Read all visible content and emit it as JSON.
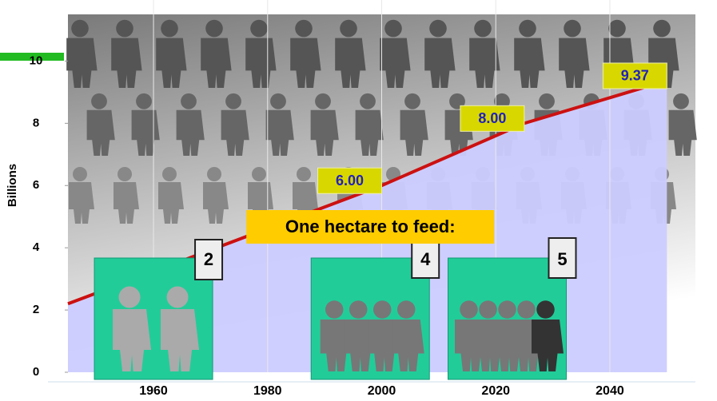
{
  "chart_data": {
    "type": "line",
    "y_label": "Billions",
    "x": [
      1945,
      2000,
      2025,
      2050
    ],
    "series": [
      {
        "color": "#cc1111",
        "values": [
          2.2,
          6.0,
          8.0,
          9.37
        ],
        "value_labels": [
          null,
          "6.00",
          "8.00",
          "9.37"
        ]
      }
    ],
    "xlim": [
      1945,
      2055
    ],
    "ylim": [
      0,
      11.5
    ],
    "xticks": [
      1960,
      1980,
      2000,
      2020,
      2040
    ],
    "yticks": [
      0,
      2,
      4,
      6,
      8,
      10
    ],
    "grid": true,
    "area_color": "#ccccff",
    "annotation": {
      "title": "One hectare to feed:",
      "x": [
        1960,
        1998,
        2022
      ],
      "people": [
        2,
        4,
        5
      ]
    }
  }
}
